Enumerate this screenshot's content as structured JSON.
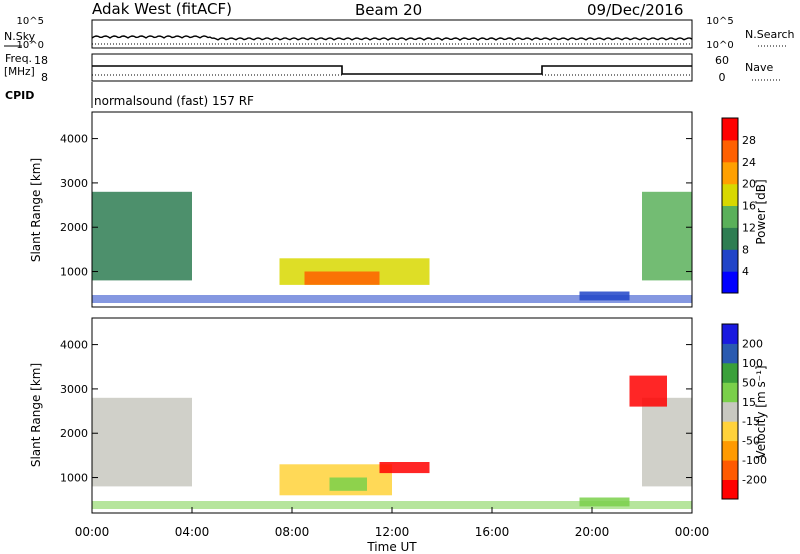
{
  "header": {
    "station": "Adak West (fitACF)",
    "beam": "Beam 20",
    "date": "09/Dec/2016"
  },
  "left_labels": {
    "nsky": "N.Sky",
    "freq": "Freq.",
    "mhz": "[MHz]",
    "cpid": "CPID"
  },
  "right_labels": {
    "nsearch": "N.Search",
    "nave": "Nave"
  },
  "noise_panel": {
    "ticks": [
      "10^5",
      "10^0"
    ],
    "right_ticks": [
      "10^5",
      "10^0"
    ]
  },
  "freq_panel": {
    "ticks": [
      "18",
      "8"
    ],
    "right_ticks": [
      "60",
      "0"
    ]
  },
  "cpid_text": "normalsound (fast) 157 RF",
  "colors": {
    "power_scale": [
      "#0000ff",
      "#2044c8",
      "#2e7d52",
      "#5ab05a",
      "#d8d800",
      "#ffa000",
      "#ff6000",
      "#ff0000"
    ],
    "velocity_scale": [
      "#ff0000",
      "#ff5a00",
      "#ff9a00",
      "#ffd23a",
      "#c8c8c0",
      "#7ad04a",
      "#3aa03a",
      "#2a5ab0",
      "#1a1ae0"
    ]
  },
  "chart_data": [
    {
      "type": "heatmap",
      "name": "power",
      "ylabel": "Slant Range [km]",
      "yticks": [
        "1000",
        "2000",
        "3000",
        "4000"
      ],
      "ylim": [
        200,
        4600
      ],
      "xlim_hours": [
        0,
        24
      ],
      "colorbar_label": "Power [dB]",
      "colorbar_ticks": [
        "4",
        "8",
        "12",
        "16",
        "20",
        "24",
        "28"
      ],
      "colorbar_range": [
        0,
        30
      ],
      "patches": [
        {
          "t": [
            0.0,
            4.0
          ],
          "r": [
            800,
            2800
          ],
          "value": 10
        },
        {
          "t": [
            7.5,
            13.5
          ],
          "r": [
            700,
            1300
          ],
          "value": 18
        },
        {
          "t": [
            8.5,
            11.5
          ],
          "r": [
            700,
            1000
          ],
          "value": 26
        },
        {
          "t": [
            19.5,
            21.5
          ],
          "r": [
            350,
            550
          ],
          "value": 6
        },
        {
          "t": [
            22.0,
            24.0
          ],
          "r": [
            800,
            2800
          ],
          "value": 12
        }
      ]
    },
    {
      "type": "heatmap",
      "name": "velocity",
      "ylabel": "Slant Range [km]",
      "yticks": [
        "1000",
        "2000",
        "3000",
        "4000"
      ],
      "ylim": [
        200,
        4600
      ],
      "xlim_hours": [
        0,
        24
      ],
      "xticks": [
        "00:00",
        "04:00",
        "08:00",
        "12:00",
        "16:00",
        "20:00",
        "00:00"
      ],
      "xlabel": "Time UT",
      "colorbar_label": "Velocity [m s⁻¹]",
      "colorbar_ticks": [
        "-200",
        "-100",
        "-50",
        "-15",
        "15",
        "50",
        "100",
        "200"
      ],
      "colorbar_range": [
        -250,
        250
      ],
      "patches": [
        {
          "t": [
            0.0,
            4.0
          ],
          "r": [
            800,
            2800
          ],
          "value": 0
        },
        {
          "t": [
            7.5,
            12.0
          ],
          "r": [
            600,
            1300
          ],
          "value": -60
        },
        {
          "t": [
            11.5,
            13.5
          ],
          "r": [
            1100,
            1350
          ],
          "value": -200
        },
        {
          "t": [
            9.5,
            11.0
          ],
          "r": [
            700,
            1000
          ],
          "value": 40
        },
        {
          "t": [
            19.5,
            21.5
          ],
          "r": [
            350,
            550
          ],
          "value": 60
        },
        {
          "t": [
            22.0,
            24.0
          ],
          "r": [
            800,
            2800
          ],
          "value": 0
        },
        {
          "t": [
            21.5,
            23.0
          ],
          "r": [
            2600,
            3300
          ],
          "value": -200
        }
      ]
    }
  ]
}
